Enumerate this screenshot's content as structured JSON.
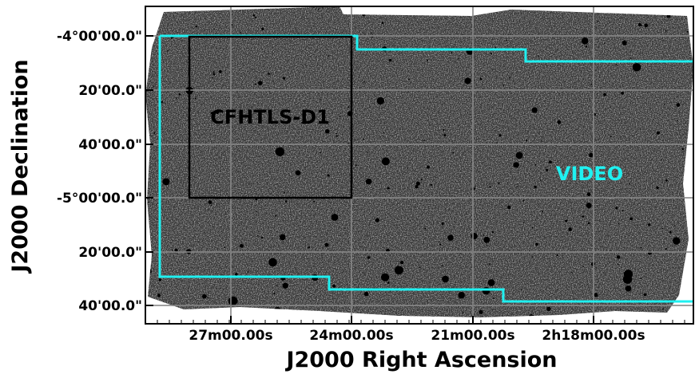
{
  "x_axis": {
    "label": "J2000 Right Ascension",
    "ticks": [
      "27m00.00s",
      "24m00.00s",
      "21m00.00s",
      "2h18m00.00s"
    ]
  },
  "y_axis": {
    "label": "J2000 Declination",
    "ticks": [
      "-4°00'00.0\"",
      "20'00.0\"",
      "40'00.0\"",
      "-5°00'00.0\"",
      "20'00.0\"",
      "40'00.0\""
    ]
  },
  "annotations": {
    "deep_field": "CFHTLS-D1",
    "survey": "VIDEO"
  }
}
